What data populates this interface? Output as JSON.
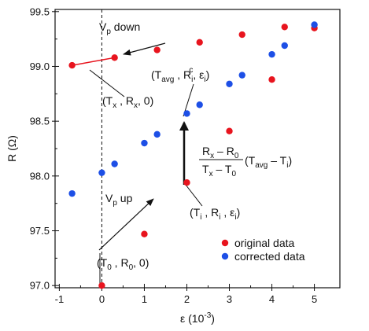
{
  "chart_data": {
    "type": "scatter",
    "xlabel": {
      "main": "ε (10",
      "sup": "-3",
      "tail": ")"
    },
    "ylabel": "R (Ω)",
    "xlim": [
      -1.1,
      5.6
    ],
    "ylim": [
      96.98,
      99.52
    ],
    "x_ticks": [
      -1,
      0,
      1,
      2,
      3,
      4,
      5
    ],
    "x_tick_labels": [
      "-1",
      "0",
      "1",
      "2",
      "3",
      "4",
      "5"
    ],
    "y_ticks": [
      97.0,
      97.5,
      98.0,
      98.5,
      99.0,
      99.5
    ],
    "y_tick_labels": [
      "97.0",
      "97.5",
      "98.0",
      "98.5",
      "99.0",
      "99.5"
    ],
    "colors": {
      "original": "#e8141e",
      "corrected": "#1d4fe6"
    },
    "series": [
      {
        "name": "original data",
        "color": "#e8141e",
        "points": [
          {
            "x": 0,
            "y": 97.0
          },
          {
            "x": 1,
            "y": 97.47
          },
          {
            "x": 2,
            "y": 97.94
          },
          {
            "x": 3,
            "y": 98.41
          },
          {
            "x": 4,
            "y": 98.88
          },
          {
            "x": 5,
            "y": 99.35
          },
          {
            "x": 4.3,
            "y": 99.36
          },
          {
            "x": 3.3,
            "y": 99.29
          },
          {
            "x": 2.3,
            "y": 99.22
          },
          {
            "x": 1.3,
            "y": 99.15
          },
          {
            "x": 0.3,
            "y": 99.08
          },
          {
            "x": -0.7,
            "y": 99.01
          }
        ]
      },
      {
        "name": "corrected data",
        "color": "#1d4fe6",
        "points": [
          {
            "x": -0.7,
            "y": 97.84
          },
          {
            "x": 0,
            "y": 98.03
          },
          {
            "x": 0.3,
            "y": 98.11
          },
          {
            "x": 1,
            "y": 98.3
          },
          {
            "x": 1.3,
            "y": 98.38
          },
          {
            "x": 2,
            "y": 98.57
          },
          {
            "x": 2.3,
            "y": 98.65
          },
          {
            "x": 3,
            "y": 98.84
          },
          {
            "x": 3.3,
            "y": 98.92
          },
          {
            "x": 4,
            "y": 99.11
          },
          {
            "x": 4.3,
            "y": 99.19
          },
          {
            "x": 5,
            "y": 99.38
          }
        ]
      }
    ],
    "legend": {
      "position": "bottom-right",
      "entries": [
        "original data",
        "corrected data"
      ]
    },
    "annotations": {
      "vp_down": {
        "main": "V",
        "sub": "p",
        "tail": " down"
      },
      "vp_up": {
        "main": "V",
        "sub": "p",
        "tail": " up"
      },
      "tx_point": {
        "a": "(T",
        "a_sub": "x",
        "b": " , R",
        "b_sub": "x",
        "c": ", 0)"
      },
      "t0_point": {
        "a": "(T",
        "a_sub": "0",
        "b": " , R",
        "b_sub": "0",
        "c": ", 0)"
      },
      "ti_point": {
        "a": "(T",
        "a_sub": "i",
        "b": " , R",
        "b_sub": "i",
        "c": " , ε",
        "c_sub": "i",
        "d": ")"
      },
      "tavg_point": {
        "a": "(T",
        "a_sub": "avg",
        "b": " , R",
        "b_sub": "i",
        "b_sup": "c",
        "c": ", ε",
        "c_sub": "i",
        "d": ")"
      },
      "formula": {
        "num_a": "R",
        "num_a_sub": "x",
        "num_b": " – R",
        "num_b_sub": "0",
        "den_a": "T",
        "den_a_sub": "x",
        "den_b": " – T",
        "den_b_sub": "0",
        "tail_a": "(T",
        "tail_a_sub": "avg",
        "tail_b": " – T",
        "tail_b_sub": "i",
        "tail_c": ")"
      }
    }
  }
}
